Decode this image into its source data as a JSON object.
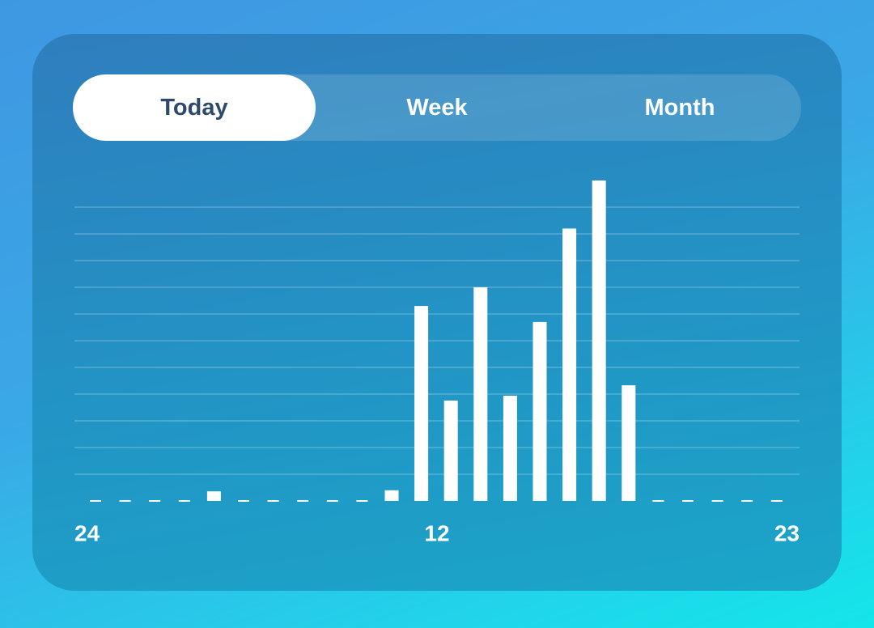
{
  "tabs": [
    "Today",
    "Week",
    "Month"
  ],
  "selected_tab": 0,
  "chart_data": {
    "type": "bar",
    "categories": [
      "24",
      null,
      null,
      null,
      null,
      null,
      null,
      null,
      null,
      null,
      null,
      null,
      "12",
      null,
      null,
      null,
      null,
      null,
      null,
      null,
      null,
      null,
      null,
      "23"
    ],
    "values": [
      0,
      0,
      0,
      0,
      0.36,
      0,
      0,
      0,
      0,
      0,
      0.4,
      7.3,
      3.76,
      8.0,
      3.94,
      6.7,
      10.2,
      12.0,
      4.33,
      0,
      0,
      0,
      0,
      0
    ],
    "color": "#ffffff",
    "ylim": [
      0,
      12
    ],
    "yticks": [
      1,
      2,
      3,
      4,
      5,
      6,
      7,
      8,
      9,
      10,
      11
    ],
    "grid": true
  }
}
